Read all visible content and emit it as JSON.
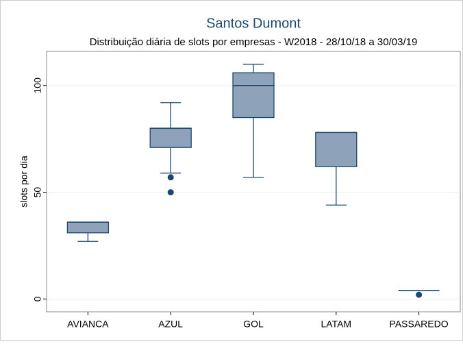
{
  "chart_data": {
    "type": "box",
    "title": "Santos Dumont",
    "subtitle": "Distribuição diária de slots por empresas - W2018 - 28/10/18 a 30/03/19",
    "y_label": "slots por dia",
    "categories": [
      "AVIANCA",
      "AZUL",
      "GOL",
      "LATAM",
      "PASSAREDO"
    ],
    "min": [
      27,
      59,
      57,
      44,
      4
    ],
    "q1": [
      31,
      71,
      85,
      62,
      4
    ],
    "median": [
      36,
      80,
      100,
      78,
      4
    ],
    "q3": [
      36,
      80,
      106,
      78,
      4
    ],
    "max": [
      36,
      92,
      110,
      78,
      4
    ],
    "outliers": [
      [],
      [
        57,
        50
      ],
      [],
      [],
      [
        2
      ]
    ],
    "color": "#8ea3ba",
    "line_color": "#1a476f",
    "ylim": [
      -6,
      116
    ],
    "yticks": [
      0,
      50,
      100
    ],
    "grid": true
  }
}
